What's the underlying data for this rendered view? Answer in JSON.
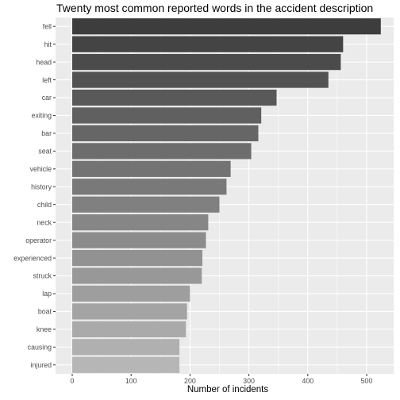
{
  "chart_data": {
    "type": "bar",
    "orientation": "horizontal",
    "title": "Twenty most common reported words in the accident description",
    "xlabel": "Number of incidents",
    "ylabel": "",
    "xlim": [
      0,
      520
    ],
    "xticks": [
      0,
      100,
      200,
      300,
      400,
      500
    ],
    "grid": true,
    "categories": [
      "fell",
      "hit",
      "head",
      "left",
      "car",
      "exiting",
      "bar",
      "seat",
      "vehicle",
      "history",
      "child",
      "neck",
      "operator",
      "experienced",
      "struck",
      "lap",
      "boat",
      "knee",
      "causing",
      "injured"
    ],
    "values": [
      524,
      460,
      456,
      435,
      347,
      321,
      316,
      304,
      269,
      262,
      250,
      231,
      227,
      221,
      220,
      200,
      195,
      193,
      182,
      182
    ],
    "bar_colors": [
      "#3d3d3d",
      "#444444",
      "#4b4b4b",
      "#525252",
      "#595959",
      "#606060",
      "#666666",
      "#6d6d6d",
      "#737373",
      "#797979",
      "#808080",
      "#868686",
      "#8c8c8c",
      "#929292",
      "#989898",
      "#9e9e9e",
      "#a4a4a4",
      "#aaaaaa",
      "#b0b0b0",
      "#b6b6b6"
    ],
    "panel_background": "#ebebeb",
    "grid_color": "#ffffff"
  }
}
